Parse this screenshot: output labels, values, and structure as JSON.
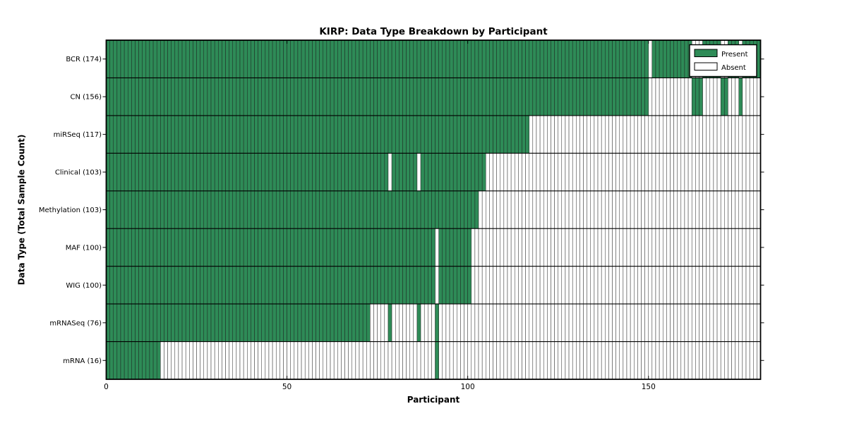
{
  "chart_data": {
    "type": "heatmap",
    "title": "KIRP: Data Type Breakdown by Participant",
    "xlabel": "Participant",
    "ylabel": "Data Type (Total Sample Count)",
    "x_ticks": [
      0,
      50,
      100,
      150
    ],
    "xlim": [
      0,
      181
    ],
    "n_participants": 181,
    "grid": "cell-borders",
    "legend_position": "upper-right",
    "legend": {
      "entries": [
        {
          "label": "Present",
          "color": "#2e8b57"
        },
        {
          "label": "Absent",
          "color": "#ffffff"
        }
      ]
    },
    "colors": {
      "present": "#2e8b57",
      "absent": "#ffffff",
      "cell_border": "#1a1a1a",
      "frame": "#000000"
    },
    "rows": [
      {
        "label": "BCR (174)",
        "data_type": "BCR",
        "count": 174,
        "present_ranges": [
          [
            0,
            149
          ],
          [
            151,
            161
          ],
          [
            165,
            169
          ],
          [
            172,
            174
          ],
          [
            176,
            180
          ]
        ]
      },
      {
        "label": "CN (156)",
        "data_type": "CN",
        "count": 156,
        "present_ranges": [
          [
            0,
            149
          ],
          [
            162,
            164
          ],
          [
            170,
            171
          ],
          [
            175,
            175
          ]
        ]
      },
      {
        "label": "miRSeq (117)",
        "data_type": "miRSeq",
        "count": 117,
        "present_ranges": [
          [
            0,
            116
          ]
        ]
      },
      {
        "label": "Clinical (103)",
        "data_type": "Clinical",
        "count": 103,
        "present_ranges": [
          [
            0,
            77
          ],
          [
            79,
            85
          ],
          [
            87,
            104
          ]
        ]
      },
      {
        "label": "Methylation (103)",
        "data_type": "Methylation",
        "count": 103,
        "present_ranges": [
          [
            0,
            102
          ]
        ]
      },
      {
        "label": "MAF (100)",
        "data_type": "MAF",
        "count": 100,
        "present_ranges": [
          [
            0,
            90
          ],
          [
            92,
            100
          ]
        ]
      },
      {
        "label": "WIG (100)",
        "data_type": "WIG",
        "count": 100,
        "present_ranges": [
          [
            0,
            90
          ],
          [
            92,
            100
          ]
        ]
      },
      {
        "label": "mRNASeq (76)",
        "data_type": "mRNASeq",
        "count": 76,
        "present_ranges": [
          [
            0,
            72
          ],
          [
            78,
            78
          ],
          [
            86,
            86
          ],
          [
            91,
            91
          ]
        ]
      },
      {
        "label": "mRNA (16)",
        "data_type": "mRNA",
        "count": 16,
        "present_ranges": [
          [
            0,
            14
          ],
          [
            91,
            91
          ]
        ]
      }
    ]
  }
}
